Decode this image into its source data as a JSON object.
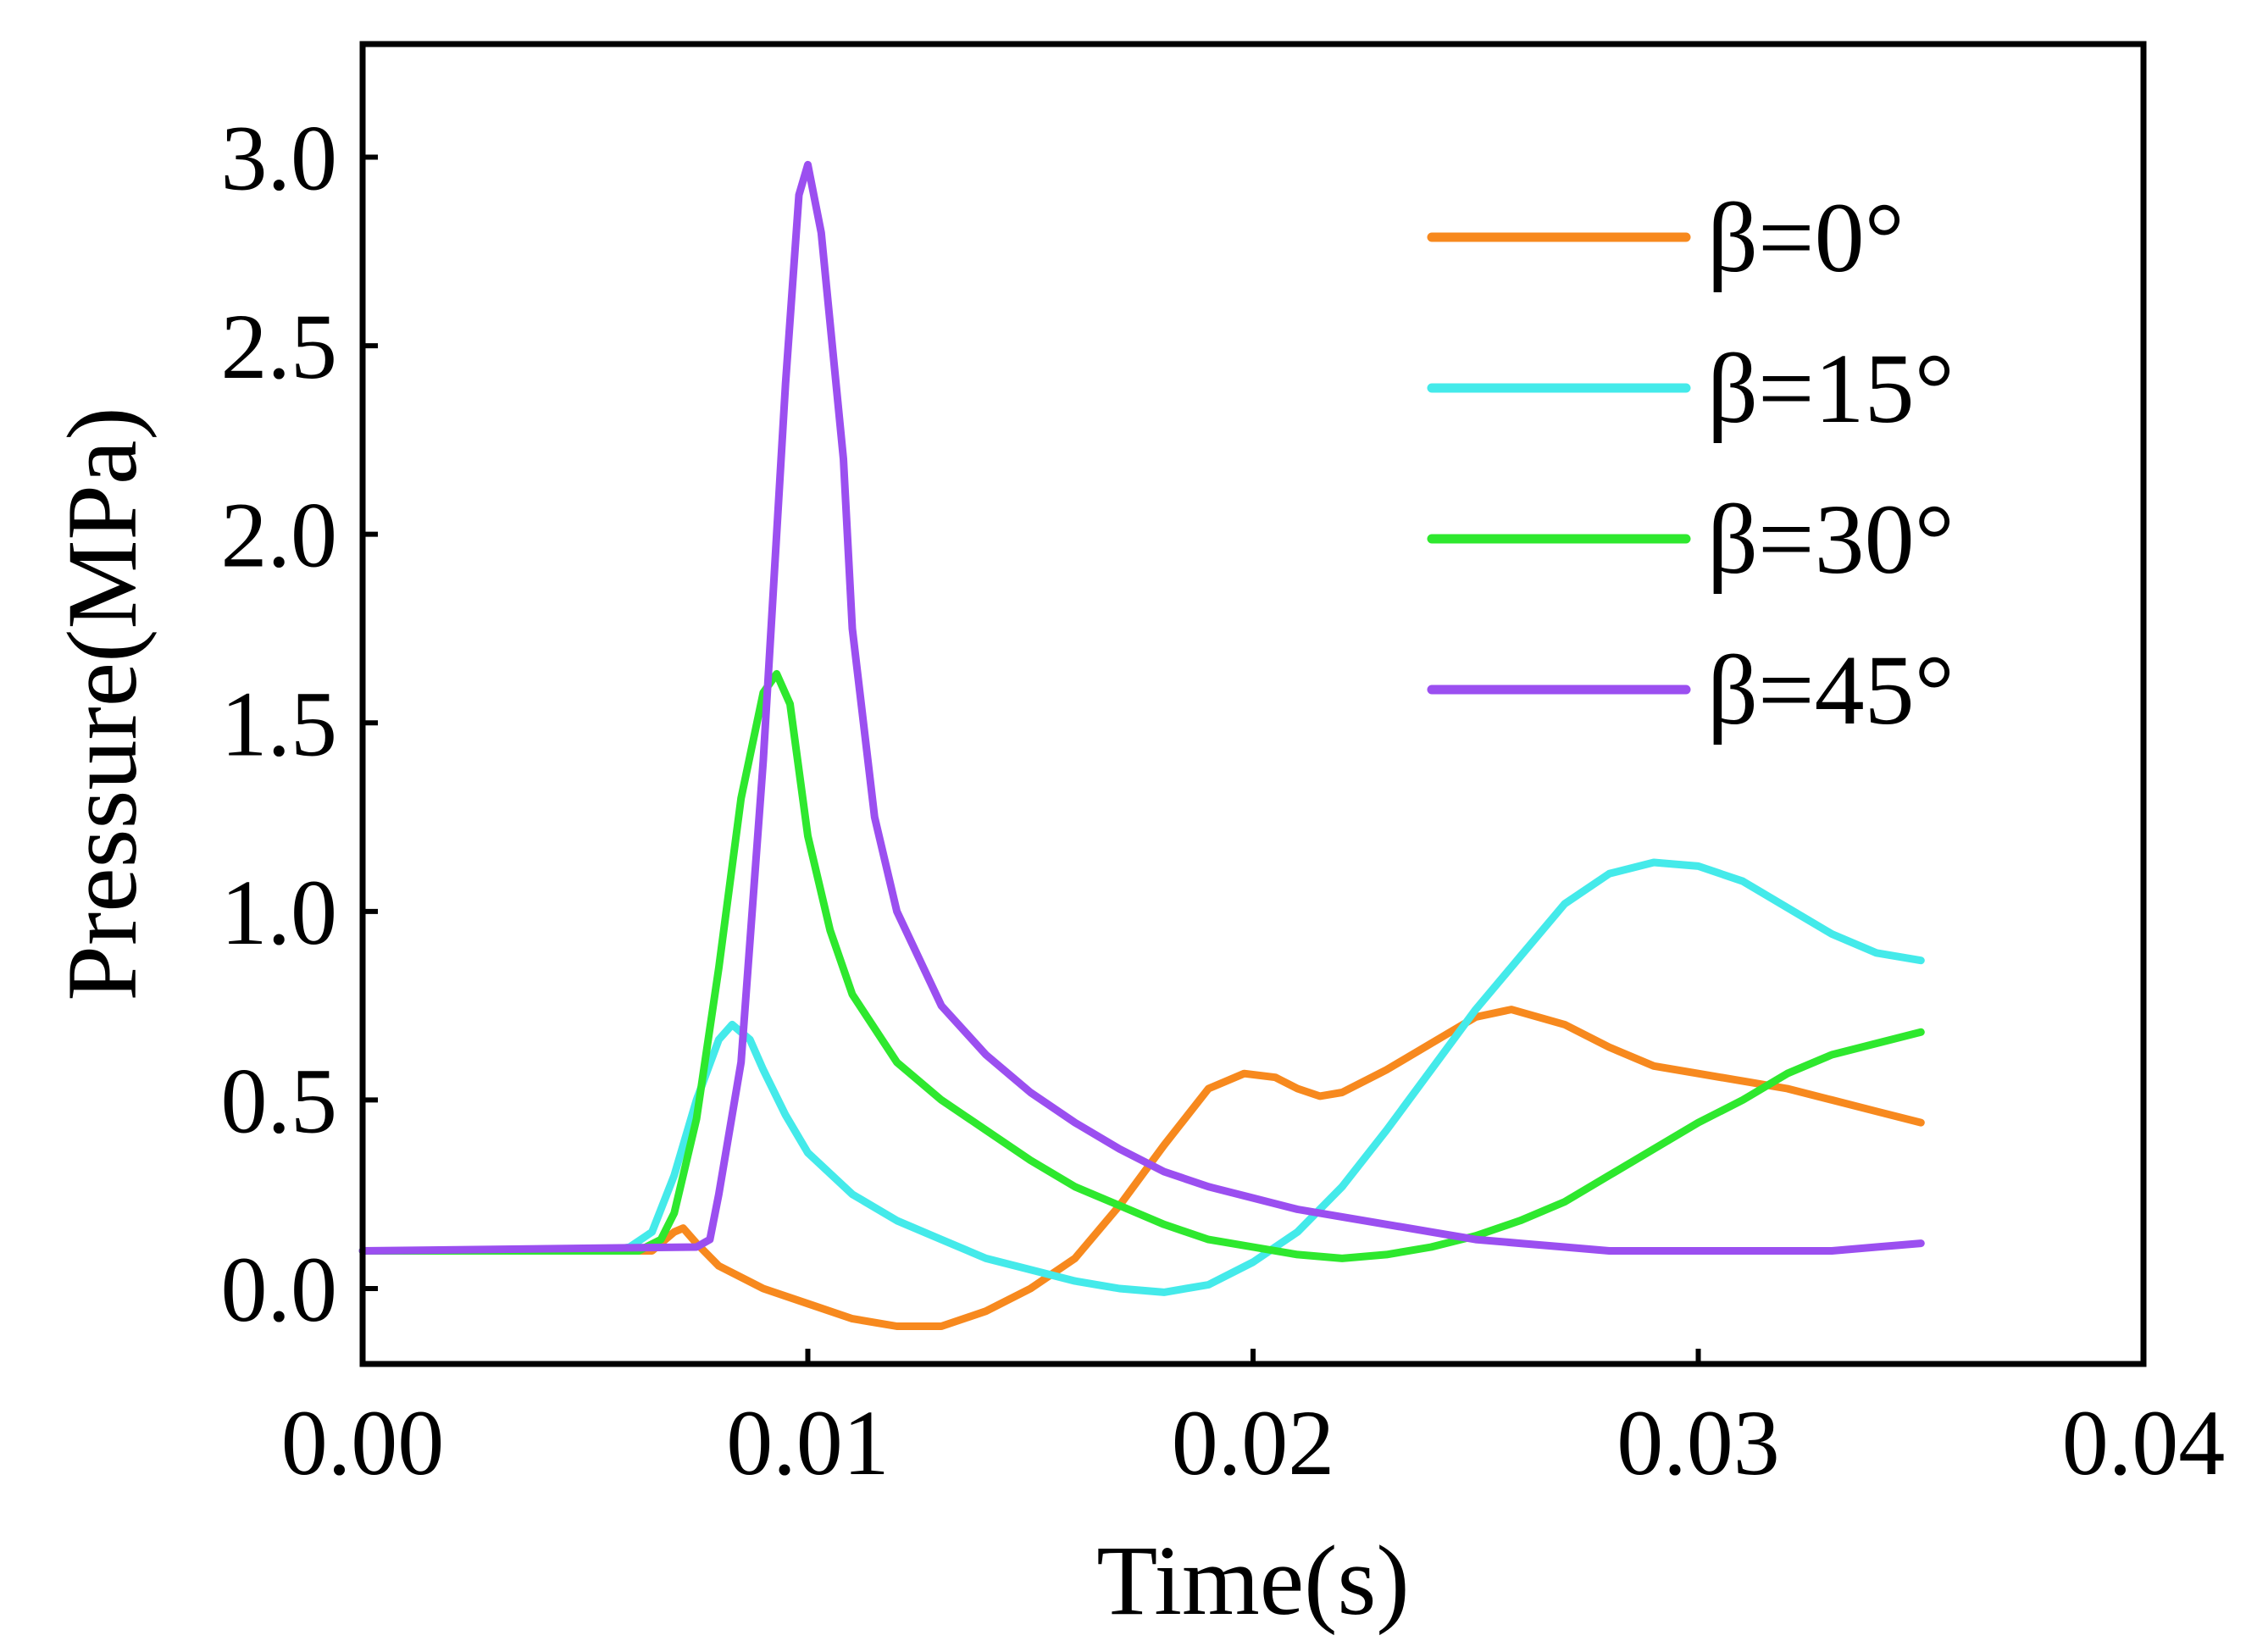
{
  "chart_data": {
    "type": "line",
    "title": "",
    "xlabel": "Time(s)",
    "ylabel": "Pressure(MPa)",
    "xlim": [
      0.0,
      0.04
    ],
    "ylim": [
      -0.2,
      3.3
    ],
    "xticks": [
      0.0,
      0.01,
      0.02,
      0.03,
      0.04
    ],
    "xtick_labels": [
      "0.00",
      "0.01",
      "0.02",
      "0.03",
      "0.04"
    ],
    "yticks": [
      0.0,
      0.5,
      1.0,
      1.5,
      2.0,
      2.5,
      3.0
    ],
    "ytick_labels": [
      "0.0",
      "0.5",
      "1.0",
      "1.5",
      "2.0",
      "2.5",
      "3.0"
    ],
    "grid": false,
    "legend_position": "top-right",
    "series": [
      {
        "name": "β=0°",
        "color": "#f7891e",
        "points": [
          [
            0.0,
            0.1
          ],
          [
            0.0065,
            0.1
          ],
          [
            0.007,
            0.15
          ],
          [
            0.0072,
            0.16
          ],
          [
            0.0075,
            0.12
          ],
          [
            0.008,
            0.06
          ],
          [
            0.009,
            0.0
          ],
          [
            0.01,
            -0.04
          ],
          [
            0.011,
            -0.08
          ],
          [
            0.012,
            -0.1
          ],
          [
            0.013,
            -0.1
          ],
          [
            0.014,
            -0.06
          ],
          [
            0.015,
            0.0
          ],
          [
            0.016,
            0.08
          ],
          [
            0.017,
            0.22
          ],
          [
            0.018,
            0.38
          ],
          [
            0.019,
            0.53
          ],
          [
            0.0198,
            0.57
          ],
          [
            0.0205,
            0.56
          ],
          [
            0.021,
            0.53
          ],
          [
            0.0215,
            0.51
          ],
          [
            0.022,
            0.52
          ],
          [
            0.023,
            0.58
          ],
          [
            0.024,
            0.65
          ],
          [
            0.025,
            0.72
          ],
          [
            0.0258,
            0.74
          ],
          [
            0.027,
            0.7
          ],
          [
            0.028,
            0.64
          ],
          [
            0.029,
            0.59
          ],
          [
            0.03,
            0.57
          ],
          [
            0.031,
            0.55
          ],
          [
            0.032,
            0.53
          ],
          [
            0.033,
            0.5
          ],
          [
            0.034,
            0.47
          ],
          [
            0.035,
            0.44
          ]
        ]
      },
      {
        "name": "β=15°",
        "color": "#44eaea",
        "points": [
          [
            0.0,
            0.1
          ],
          [
            0.0055,
            0.1
          ],
          [
            0.006,
            0.11
          ],
          [
            0.0065,
            0.15
          ],
          [
            0.007,
            0.3
          ],
          [
            0.0075,
            0.5
          ],
          [
            0.008,
            0.66
          ],
          [
            0.0083,
            0.7
          ],
          [
            0.0087,
            0.66
          ],
          [
            0.009,
            0.58
          ],
          [
            0.0095,
            0.46
          ],
          [
            0.01,
            0.36
          ],
          [
            0.011,
            0.25
          ],
          [
            0.012,
            0.18
          ],
          [
            0.013,
            0.13
          ],
          [
            0.014,
            0.08
          ],
          [
            0.015,
            0.05
          ],
          [
            0.016,
            0.02
          ],
          [
            0.017,
            0.0
          ],
          [
            0.018,
            -0.01
          ],
          [
            0.019,
            0.01
          ],
          [
            0.02,
            0.07
          ],
          [
            0.021,
            0.15
          ],
          [
            0.022,
            0.27
          ],
          [
            0.023,
            0.42
          ],
          [
            0.024,
            0.58
          ],
          [
            0.025,
            0.74
          ],
          [
            0.026,
            0.88
          ],
          [
            0.027,
            1.02
          ],
          [
            0.028,
            1.1
          ],
          [
            0.029,
            1.13
          ],
          [
            0.03,
            1.12
          ],
          [
            0.031,
            1.08
          ],
          [
            0.032,
            1.01
          ],
          [
            0.033,
            0.94
          ],
          [
            0.034,
            0.89
          ],
          [
            0.035,
            0.87
          ]
        ]
      },
      {
        "name": "β=30°",
        "color": "#2ee82e",
        "points": [
          [
            0.0,
            0.1
          ],
          [
            0.0062,
            0.1
          ],
          [
            0.0067,
            0.13
          ],
          [
            0.007,
            0.2
          ],
          [
            0.0075,
            0.45
          ],
          [
            0.008,
            0.85
          ],
          [
            0.0085,
            1.3
          ],
          [
            0.009,
            1.58
          ],
          [
            0.0093,
            1.63
          ],
          [
            0.0096,
            1.55
          ],
          [
            0.01,
            1.2
          ],
          [
            0.0105,
            0.95
          ],
          [
            0.011,
            0.78
          ],
          [
            0.012,
            0.6
          ],
          [
            0.013,
            0.5
          ],
          [
            0.014,
            0.42
          ],
          [
            0.015,
            0.34
          ],
          [
            0.016,
            0.27
          ],
          [
            0.017,
            0.22
          ],
          [
            0.018,
            0.17
          ],
          [
            0.019,
            0.13
          ],
          [
            0.02,
            0.11
          ],
          [
            0.021,
            0.09
          ],
          [
            0.022,
            0.08
          ],
          [
            0.023,
            0.09
          ],
          [
            0.024,
            0.11
          ],
          [
            0.025,
            0.14
          ],
          [
            0.026,
            0.18
          ],
          [
            0.027,
            0.23
          ],
          [
            0.028,
            0.3
          ],
          [
            0.029,
            0.37
          ],
          [
            0.03,
            0.44
          ],
          [
            0.031,
            0.5
          ],
          [
            0.032,
            0.57
          ],
          [
            0.033,
            0.62
          ],
          [
            0.034,
            0.65
          ],
          [
            0.035,
            0.68
          ]
        ]
      },
      {
        "name": "β=45°",
        "color": "#9b4ff0",
        "points": [
          [
            0.0,
            0.1
          ],
          [
            0.0075,
            0.11
          ],
          [
            0.0078,
            0.13
          ],
          [
            0.008,
            0.25
          ],
          [
            0.0085,
            0.6
          ],
          [
            0.009,
            1.4
          ],
          [
            0.0095,
            2.4
          ],
          [
            0.0098,
            2.9
          ],
          [
            0.01,
            2.98
          ],
          [
            0.0103,
            2.8
          ],
          [
            0.0108,
            2.2
          ],
          [
            0.011,
            1.75
          ],
          [
            0.0115,
            1.25
          ],
          [
            0.012,
            1.0
          ],
          [
            0.013,
            0.75
          ],
          [
            0.014,
            0.62
          ],
          [
            0.015,
            0.52
          ],
          [
            0.016,
            0.44
          ],
          [
            0.017,
            0.37
          ],
          [
            0.018,
            0.31
          ],
          [
            0.019,
            0.27
          ],
          [
            0.02,
            0.24
          ],
          [
            0.021,
            0.21
          ],
          [
            0.022,
            0.19
          ],
          [
            0.023,
            0.17
          ],
          [
            0.024,
            0.15
          ],
          [
            0.025,
            0.13
          ],
          [
            0.026,
            0.12
          ],
          [
            0.027,
            0.11
          ],
          [
            0.028,
            0.1
          ],
          [
            0.029,
            0.1
          ],
          [
            0.03,
            0.1
          ],
          [
            0.031,
            0.1
          ],
          [
            0.032,
            0.1
          ],
          [
            0.033,
            0.1
          ],
          [
            0.034,
            0.11
          ],
          [
            0.035,
            0.12
          ]
        ]
      }
    ]
  }
}
